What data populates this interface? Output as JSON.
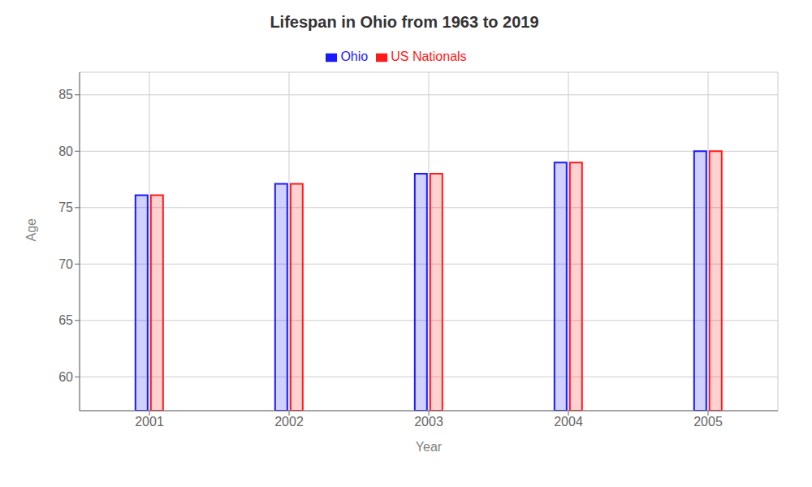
{
  "chart_data": {
    "type": "bar",
    "title": "Lifespan in Ohio from 1963 to 2019",
    "xlabel": "Year",
    "ylabel": "Age",
    "categories": [
      "2001",
      "2002",
      "2003",
      "2004",
      "2005"
    ],
    "series": [
      {
        "name": "Ohio",
        "color": "#1a1aff",
        "values": [
          76.1,
          77.1,
          78.0,
          79.0,
          80.0
        ]
      },
      {
        "name": "US Nationals",
        "color": "#ff1a1a",
        "values": [
          76.1,
          77.1,
          78.0,
          79.0,
          80.0
        ]
      }
    ],
    "ylim": [
      57,
      87
    ],
    "yticks": [
      60,
      65,
      70,
      75,
      80,
      85
    ],
    "grid": true,
    "legend": "top"
  }
}
